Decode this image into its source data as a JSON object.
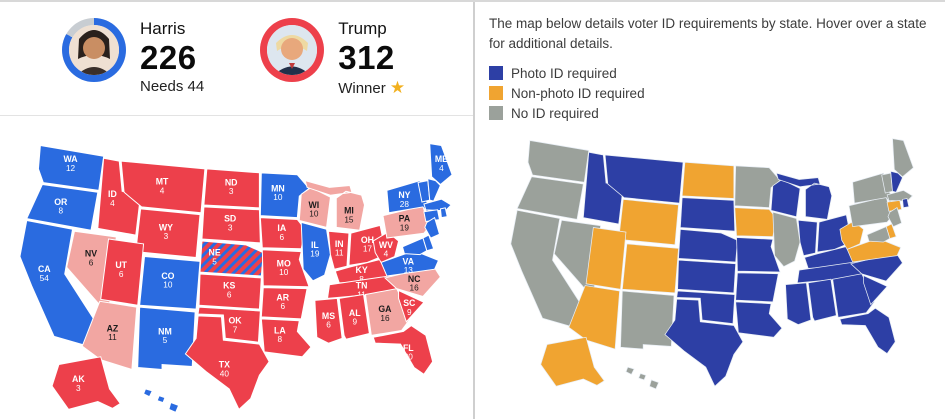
{
  "election_panel": {
    "harris": {
      "name": "Harris",
      "votes": "226",
      "status": "Needs 44"
    },
    "trump": {
      "name": "Trump",
      "votes": "312",
      "status": "Winner",
      "star": "★"
    },
    "colors": {
      "dem": "#2a6be0",
      "rep": "#ed404b",
      "lean": "#f2a6a2",
      "split_stripe": "#2a6be0",
      "label_light": "#ffffff",
      "label_dark": "#1c1c1c",
      "ring_remaining": "#c8cdd2"
    },
    "states": [
      {
        "id": "WA",
        "abbr": "WA",
        "votes": "12",
        "party": "dem"
      },
      {
        "id": "OR",
        "abbr": "OR",
        "votes": "8",
        "party": "dem"
      },
      {
        "id": "CA",
        "abbr": "CA",
        "votes": "54",
        "party": "dem"
      },
      {
        "id": "NV",
        "abbr": "NV",
        "votes": "6",
        "party": "lean"
      },
      {
        "id": "ID",
        "abbr": "ID",
        "votes": "4",
        "party": "rep"
      },
      {
        "id": "MT",
        "abbr": "MT",
        "votes": "4",
        "party": "rep"
      },
      {
        "id": "WY",
        "abbr": "WY",
        "votes": "3",
        "party": "rep"
      },
      {
        "id": "UT",
        "abbr": "UT",
        "votes": "6",
        "party": "rep"
      },
      {
        "id": "CO",
        "abbr": "CO",
        "votes": "10",
        "party": "dem"
      },
      {
        "id": "AZ",
        "abbr": "AZ",
        "votes": "11",
        "party": "lean"
      },
      {
        "id": "NM",
        "abbr": "NM",
        "votes": "5",
        "party": "dem"
      },
      {
        "id": "ND",
        "abbr": "ND",
        "votes": "3",
        "party": "rep"
      },
      {
        "id": "SD",
        "abbr": "SD",
        "votes": "3",
        "party": "rep"
      },
      {
        "id": "NE",
        "abbr": "NE",
        "votes": "5",
        "party": "rep-split"
      },
      {
        "id": "KS",
        "abbr": "KS",
        "votes": "6",
        "party": "rep"
      },
      {
        "id": "OK",
        "abbr": "OK",
        "votes": "7",
        "party": "rep"
      },
      {
        "id": "TX",
        "abbr": "TX",
        "votes": "40",
        "party": "rep"
      },
      {
        "id": "MN",
        "abbr": "MN",
        "votes": "10",
        "party": "dem"
      },
      {
        "id": "IA",
        "abbr": "IA",
        "votes": "6",
        "party": "rep"
      },
      {
        "id": "MO",
        "abbr": "MO",
        "votes": "10",
        "party": "rep"
      },
      {
        "id": "AR",
        "abbr": "AR",
        "votes": "6",
        "party": "rep"
      },
      {
        "id": "LA",
        "abbr": "LA",
        "votes": "8",
        "party": "rep"
      },
      {
        "id": "WI",
        "abbr": "WI",
        "votes": "10",
        "party": "lean"
      },
      {
        "id": "IL",
        "abbr": "IL",
        "votes": "19",
        "party": "dem"
      },
      {
        "id": "MI",
        "abbr": "MI",
        "votes": "15",
        "party": "lean"
      },
      {
        "id": "IN",
        "abbr": "IN",
        "votes": "11",
        "party": "rep"
      },
      {
        "id": "OH",
        "abbr": "OH",
        "votes": "17",
        "party": "rep"
      },
      {
        "id": "KY",
        "abbr": "KY",
        "votes": "8",
        "party": "rep"
      },
      {
        "id": "TN",
        "abbr": "TN",
        "votes": "11",
        "party": "rep"
      },
      {
        "id": "MS",
        "abbr": "MS",
        "votes": "6",
        "party": "rep"
      },
      {
        "id": "AL",
        "abbr": "AL",
        "votes": "9",
        "party": "rep"
      },
      {
        "id": "GA",
        "abbr": "GA",
        "votes": "16",
        "party": "lean"
      },
      {
        "id": "FL",
        "abbr": "FL",
        "votes": "30",
        "party": "rep"
      },
      {
        "id": "SC",
        "abbr": "SC",
        "votes": "9",
        "party": "rep"
      },
      {
        "id": "NC",
        "abbr": "NC",
        "votes": "16",
        "party": "lean"
      },
      {
        "id": "VA",
        "abbr": "VA",
        "votes": "13",
        "party": "dem"
      },
      {
        "id": "WV",
        "abbr": "WV",
        "votes": "4",
        "party": "rep"
      },
      {
        "id": "PA",
        "abbr": "PA",
        "votes": "19",
        "party": "lean"
      },
      {
        "id": "NY",
        "abbr": "NY",
        "votes": "28",
        "party": "dem"
      },
      {
        "id": "ME",
        "abbr": "ME",
        "votes": "4",
        "party": "dem"
      },
      {
        "id": "AK",
        "abbr": "AK",
        "votes": "3",
        "party": "rep"
      },
      {
        "id": "HI",
        "party": "dem"
      },
      {
        "id": "VT",
        "party": "dem"
      },
      {
        "id": "NH",
        "party": "dem"
      },
      {
        "id": "MA",
        "party": "dem"
      },
      {
        "id": "RI",
        "party": "dem"
      },
      {
        "id": "CT",
        "party": "dem"
      },
      {
        "id": "NJ",
        "party": "dem"
      },
      {
        "id": "DE",
        "party": "dem"
      },
      {
        "id": "MD",
        "party": "dem"
      }
    ]
  },
  "voter_id_panel": {
    "intro": "The map below details voter ID requirements by state. Hover over a state for additional details.",
    "legend": [
      {
        "key": "photo",
        "label": "Photo ID required",
        "color": "#2d3fa5"
      },
      {
        "key": "nonphoto",
        "label": "Non-photo ID required",
        "color": "#f0a431"
      },
      {
        "key": "none",
        "label": "No ID required",
        "color": "#9ba19b"
      }
    ],
    "state_requirements": {
      "WA": "none",
      "OR": "none",
      "CA": "none",
      "NV": "none",
      "NM": "none",
      "MN": "none",
      "IL": "none",
      "ME": "none",
      "VT": "none",
      "MA": "none",
      "NY": "none",
      "NJ": "none",
      "PA": "none",
      "MD": "none",
      "HI": "none",
      "ID": "photo",
      "MT": "photo",
      "SD": "photo",
      "NE": "photo",
      "KS": "photo",
      "OK": "photo",
      "TX": "photo",
      "WI": "photo",
      "MI": "photo",
      "IN": "photo",
      "OH": "photo",
      "MO": "photo",
      "AR": "photo",
      "LA": "photo",
      "MS": "photo",
      "AL": "photo",
      "TN": "photo",
      "KY": "photo",
      "GA": "photo",
      "FL": "photo",
      "SC": "photo",
      "NC": "photo",
      "NH": "photo",
      "RI": "photo",
      "ND": "nonphoto",
      "WY": "nonphoto",
      "UT": "nonphoto",
      "CO": "nonphoto",
      "AZ": "nonphoto",
      "AK": "nonphoto",
      "IA": "nonphoto",
      "WV": "nonphoto",
      "VA": "nonphoto",
      "CT": "nonphoto",
      "DE": "nonphoto"
    }
  }
}
